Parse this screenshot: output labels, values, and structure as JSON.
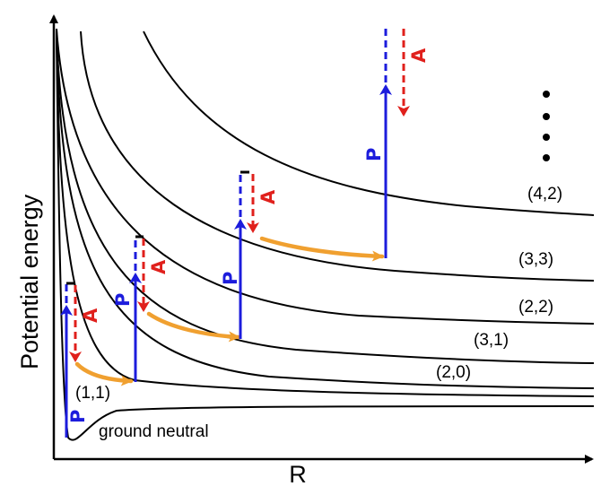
{
  "axes": {
    "y_label": "Potential energy",
    "x_label": "R"
  },
  "states": [
    {
      "id": "ground",
      "label": "ground neutral"
    },
    {
      "id": "s11",
      "label": "(1,1)"
    },
    {
      "id": "s20",
      "label": "(2,0)"
    },
    {
      "id": "s31",
      "label": "(3,1)"
    },
    {
      "id": "s22",
      "label": "(2,2)"
    },
    {
      "id": "s33",
      "label": "(3,3)"
    },
    {
      "id": "s42",
      "label": "(4,2)"
    }
  ],
  "legend": {
    "ionization_arrow_label": "P",
    "relaxation_arrow_label": "A"
  },
  "colors": {
    "curve": "#000000",
    "ionization_arrow": "#1c1cdc",
    "relaxation_arrow": "#e0201c",
    "transfer_arrow": "#f0a030"
  },
  "continuation_mark": "dots-vertical"
}
